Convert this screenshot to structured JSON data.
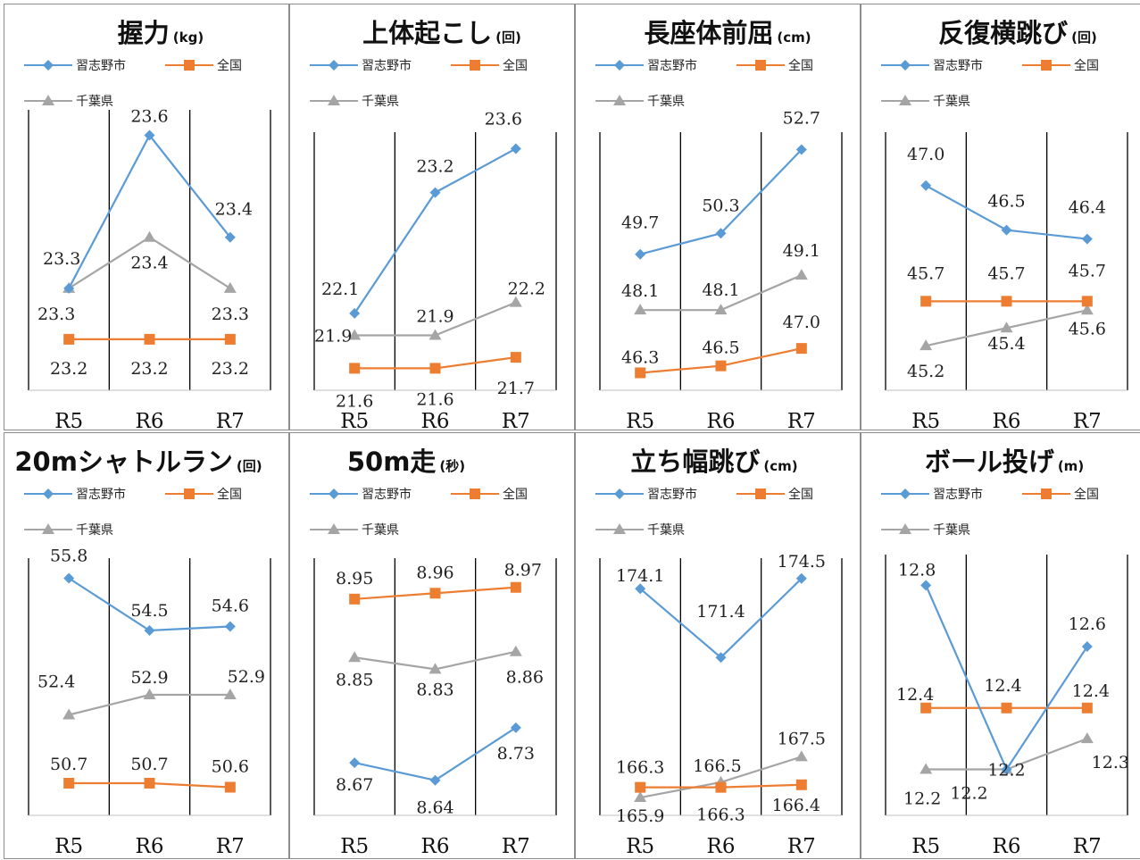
{
  "colors": {
    "city": "#5b9bd5",
    "national": "#ed7d31",
    "prefecture": "#a5a5a5"
  },
  "chart_data": [
    {
      "type": "line",
      "title": "握力",
      "unit": "(kg)",
      "categories": [
        "R5",
        "R6",
        "R7"
      ],
      "series": [
        {
          "name": "習志野市",
          "values": [
            23.3,
            23.6,
            23.4
          ],
          "labels": [
            "23.3",
            "23.6",
            "23.4"
          ]
        },
        {
          "name": "全国",
          "values": [
            23.2,
            23.2,
            23.2
          ],
          "labels": [
            "23.2",
            "23.2",
            "23.2"
          ]
        },
        {
          "name": "千葉県",
          "values": [
            23.3,
            23.4,
            23.3
          ],
          "labels": [
            "23.3",
            "23.4",
            "23.3"
          ]
        }
      ]
    },
    {
      "type": "line",
      "title": "上体起こし",
      "unit": "(回)",
      "categories": [
        "R5",
        "R6",
        "R7"
      ],
      "series": [
        {
          "name": "習志野市",
          "values": [
            22.1,
            23.2,
            23.6
          ],
          "labels": [
            "22.1",
            "23.2",
            "23.6"
          ]
        },
        {
          "name": "全国",
          "values": [
            21.6,
            21.6,
            21.7
          ],
          "labels": [
            "21.6",
            "21.6",
            "21.7"
          ]
        },
        {
          "name": "千葉県",
          "values": [
            21.9,
            21.9,
            22.2
          ],
          "labels": [
            "21.9",
            "21.9",
            "22.2"
          ]
        }
      ]
    },
    {
      "type": "line",
      "title": "長座体前屈",
      "unit": "(cm)",
      "categories": [
        "R5",
        "R6",
        "R7"
      ],
      "series": [
        {
          "name": "習志野市",
          "values": [
            49.7,
            50.3,
            52.7
          ],
          "labels": [
            "49.7",
            "50.3",
            "52.7"
          ]
        },
        {
          "name": "全国",
          "values": [
            46.3,
            46.5,
            47.0
          ],
          "labels": [
            "46.3",
            "46.5",
            "47.0"
          ]
        },
        {
          "name": "千葉県",
          "values": [
            48.1,
            48.1,
            49.1
          ],
          "labels": [
            "48.1",
            "48.1",
            "49.1"
          ]
        }
      ]
    },
    {
      "type": "line",
      "title": "反復横跳び",
      "unit": "(回)",
      "categories": [
        "R5",
        "R6",
        "R7"
      ],
      "series": [
        {
          "name": "習志野市",
          "values": [
            47.0,
            46.5,
            46.4
          ],
          "labels": [
            "47.0",
            "46.5",
            "46.4"
          ]
        },
        {
          "name": "全国",
          "values": [
            45.7,
            45.7,
            45.7
          ],
          "labels": [
            "45.7",
            "45.7",
            "45.7"
          ]
        },
        {
          "name": "千葉県",
          "values": [
            45.2,
            45.4,
            45.6
          ],
          "labels": [
            "45.2",
            "45.4",
            "45.6"
          ]
        }
      ]
    },
    {
      "type": "line",
      "title": "20mシャトルラン",
      "unit": "(回)",
      "categories": [
        "R5",
        "R6",
        "R7"
      ],
      "series": [
        {
          "name": "習志野市",
          "values": [
            55.8,
            54.5,
            54.6
          ],
          "labels": [
            "55.8",
            "54.5",
            "54.6"
          ]
        },
        {
          "name": "全国",
          "values": [
            50.7,
            50.7,
            50.6
          ],
          "labels": [
            "50.7",
            "50.7",
            "50.6"
          ]
        },
        {
          "name": "千葉県",
          "values": [
            52.4,
            52.9,
            52.9
          ],
          "labels": [
            "52.4",
            "52.9",
            "52.9"
          ]
        }
      ]
    },
    {
      "type": "line",
      "title": "50m走",
      "unit": "(秒)",
      "categories": [
        "R5",
        "R6",
        "R7"
      ],
      "series": [
        {
          "name": "習志野市",
          "values": [
            8.67,
            8.64,
            8.73
          ],
          "labels": [
            "8.67",
            "8.64",
            "8.73"
          ]
        },
        {
          "name": "全国",
          "values": [
            8.95,
            8.96,
            8.97
          ],
          "labels": [
            "8.95",
            "8.96",
            "8.97"
          ]
        },
        {
          "name": "千葉県",
          "values": [
            8.85,
            8.83,
            8.86
          ],
          "labels": [
            "8.85",
            "8.83",
            "8.86"
          ]
        }
      ]
    },
    {
      "type": "line",
      "title": "立ち幅跳び",
      "unit": "(cm)",
      "categories": [
        "R5",
        "R6",
        "R7"
      ],
      "series": [
        {
          "name": "習志野市",
          "values": [
            174.1,
            171.4,
            174.5
          ],
          "labels": [
            "174.1",
            "171.4",
            "174.5"
          ]
        },
        {
          "name": "全国",
          "values": [
            166.3,
            166.3,
            166.4
          ],
          "labels": [
            "166.3",
            "166.3",
            "166.4"
          ]
        },
        {
          "name": "千葉県",
          "values": [
            165.9,
            166.5,
            167.5
          ],
          "labels": [
            "165.9",
            "166.5",
            "167.5"
          ]
        }
      ]
    },
    {
      "type": "line",
      "title": "ボール投げ",
      "unit": "(m)",
      "categories": [
        "R5",
        "R6",
        "R7"
      ],
      "series": [
        {
          "name": "習志野市",
          "values": [
            12.8,
            12.2,
            12.6
          ],
          "labels": [
            "12.8",
            "12.2",
            "12.6"
          ]
        },
        {
          "name": "全国",
          "values": [
            12.4,
            12.4,
            12.4
          ],
          "labels": [
            "12.4",
            "12.4",
            "12.4"
          ]
        },
        {
          "name": "千葉県",
          "values": [
            12.2,
            12.2,
            12.3
          ],
          "labels": [
            "12.2",
            "12.2",
            "12.3"
          ]
        }
      ]
    }
  ]
}
